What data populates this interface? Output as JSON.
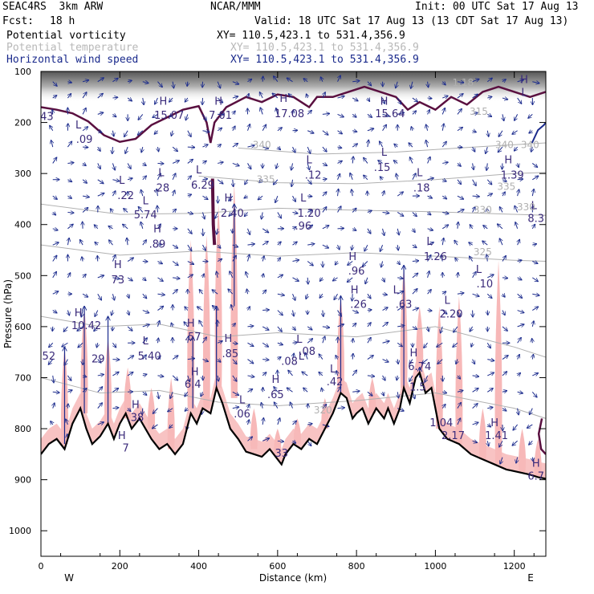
{
  "header": {
    "model": "SEAC4RS  3km ARW",
    "org": "NCAR/MMM",
    "init": "Init: 00 UTC Sat 17 Aug 13",
    "fcst_label": "Fcst:",
    "fcst_value": "18 h",
    "valid": "Valid: 18 UTC Sat 17 Aug 13 (13 CDT Sat 17 Aug 13)"
  },
  "fields": [
    {
      "name": "Potential vorticity",
      "xy": "XY= 110.5,423.1 to 531.4,356.9",
      "color": "#000000"
    },
    {
      "name": "Potential temperature",
      "xy": "XY= 110.5,423.1 to 531.4,356.9",
      "color": "#b8b8b8"
    },
    {
      "name": "Horizontal wind speed",
      "xy": "XY= 110.5,423.1 to 531.4,356.9",
      "color": "#1a2a8c"
    }
  ],
  "colors": {
    "wind": "#1a2a8c",
    "pv_contour": "#5a1040",
    "isentrope": "#b0b0b0",
    "shading": "#f7b8b8",
    "terrain": "#000000"
  },
  "chart_data": {
    "type": "cross-section",
    "xlabel": "Distance (km)",
    "ylabel": "Pressure (hPa)",
    "xlim": [
      0,
      1280
    ],
    "ylim": [
      1050,
      100
    ],
    "x_ticks": [
      0,
      200,
      400,
      600,
      800,
      1000,
      1200
    ],
    "y_ticks": [
      100,
      200,
      300,
      400,
      500,
      600,
      700,
      800,
      900,
      1000
    ],
    "end_labels": {
      "left": "W",
      "right": "E"
    },
    "terrain": [
      [
        0,
        850
      ],
      [
        20,
        830
      ],
      [
        40,
        820
      ],
      [
        60,
        840
      ],
      [
        80,
        790
      ],
      [
        100,
        760
      ],
      [
        115,
        800
      ],
      [
        130,
        830
      ],
      [
        150,
        815
      ],
      [
        170,
        790
      ],
      [
        185,
        820
      ],
      [
        200,
        790
      ],
      [
        215,
        770
      ],
      [
        230,
        800
      ],
      [
        250,
        780
      ],
      [
        265,
        800
      ],
      [
        280,
        820
      ],
      [
        300,
        840
      ],
      [
        320,
        830
      ],
      [
        340,
        850
      ],
      [
        360,
        830
      ],
      [
        380,
        770
      ],
      [
        395,
        790
      ],
      [
        410,
        760
      ],
      [
        430,
        770
      ],
      [
        445,
        720
      ],
      [
        460,
        750
      ],
      [
        480,
        800
      ],
      [
        500,
        820
      ],
      [
        520,
        845
      ],
      [
        540,
        850
      ],
      [
        560,
        855
      ],
      [
        580,
        840
      ],
      [
        600,
        860
      ],
      [
        610,
        870
      ],
      [
        620,
        850
      ],
      [
        640,
        830
      ],
      [
        660,
        840
      ],
      [
        680,
        820
      ],
      [
        700,
        830
      ],
      [
        720,
        800
      ],
      [
        740,
        770
      ],
      [
        760,
        730
      ],
      [
        775,
        740
      ],
      [
        790,
        780
      ],
      [
        800,
        770
      ],
      [
        815,
        760
      ],
      [
        830,
        790
      ],
      [
        850,
        760
      ],
      [
        870,
        780
      ],
      [
        880,
        760
      ],
      [
        895,
        790
      ],
      [
        910,
        760
      ],
      [
        920,
        720
      ],
      [
        935,
        750
      ],
      [
        950,
        700
      ],
      [
        960,
        690
      ],
      [
        975,
        730
      ],
      [
        990,
        720
      ],
      [
        1000,
        760
      ],
      [
        1010,
        800
      ],
      [
        1030,
        820
      ],
      [
        1060,
        830
      ],
      [
        1090,
        850
      ],
      [
        1120,
        860
      ],
      [
        1150,
        870
      ],
      [
        1180,
        880
      ],
      [
        1210,
        885
      ],
      [
        1240,
        890
      ],
      [
        1260,
        895
      ],
      [
        1280,
        898
      ]
    ],
    "isentropes": [
      {
        "label": "340",
        "points": [
          [
            500,
            250
          ],
          [
            700,
            262
          ],
          [
            900,
            258
          ],
          [
            1100,
            248
          ],
          [
            1280,
            240
          ]
        ]
      },
      {
        "label": "335",
        "points": [
          [
            400,
            305
          ],
          [
            600,
            318
          ],
          [
            800,
            320
          ],
          [
            1000,
            312
          ],
          [
            1200,
            300
          ],
          [
            1280,
            298
          ]
        ]
      },
      {
        "label": "330",
        "points": [
          [
            0,
            360
          ],
          [
            200,
            380
          ],
          [
            400,
            378
          ],
          [
            600,
            368
          ],
          [
            800,
            372
          ],
          [
            1000,
            375
          ],
          [
            1200,
            380
          ],
          [
            1280,
            382
          ]
        ]
      },
      {
        "label": "325",
        "points": [
          [
            0,
            440
          ],
          [
            200,
            460
          ],
          [
            400,
            452
          ],
          [
            600,
            462
          ],
          [
            800,
            455
          ],
          [
            1000,
            462
          ],
          [
            1200,
            470
          ],
          [
            1280,
            472
          ]
        ]
      },
      {
        "label": "320",
        "points": [
          [
            0,
            580
          ],
          [
            150,
            600
          ],
          [
            300,
            595
          ],
          [
            450,
            620
          ],
          [
            600,
            612
          ],
          [
            800,
            620
          ],
          [
            1000,
            600
          ],
          [
            1200,
            640
          ],
          [
            1280,
            660
          ]
        ]
      },
      {
        "label": "315",
        "points": [
          [
            0,
            700
          ],
          [
            150,
            730
          ],
          [
            300,
            725
          ],
          [
            450,
            748
          ],
          [
            600,
            755
          ],
          [
            800,
            745
          ],
          [
            1000,
            730
          ],
          [
            1200,
            760
          ],
          [
            1280,
            780
          ]
        ]
      }
    ],
    "pv_labels": [
      {
        "text": "43",
        "x": 15,
        "p": 195
      },
      {
        "text": "L",
        "x": 95,
        "p": 212
      },
      {
        "text": ".09",
        "x": 110,
        "p": 240
      },
      {
        "text": "H",
        "x": 310,
        "p": 165
      },
      {
        "text": "15.07",
        "x": 325,
        "p": 193
      },
      {
        "text": "H",
        "x": 450,
        "p": 165
      },
      {
        "text": "7.01",
        "x": 455,
        "p": 193
      },
      {
        "text": "H",
        "x": 615,
        "p": 160
      },
      {
        "text": "17.08",
        "x": 630,
        "p": 190
      },
      {
        "text": "H",
        "x": 870,
        "p": 165
      },
      {
        "text": "15.64",
        "x": 885,
        "p": 190
      },
      {
        "text": "L",
        "x": 1225,
        "p": 148
      },
      {
        "text": "H",
        "x": 1225,
        "p": 123
      },
      {
        "text": "L",
        "x": 205,
        "p": 320
      },
      {
        "text": ".22",
        "x": 215,
        "p": 350
      },
      {
        "text": "L",
        "x": 305,
        "p": 305
      },
      {
        "text": ".28",
        "x": 305,
        "p": 335
      },
      {
        "text": "L",
        "x": 265,
        "p": 360
      },
      {
        "text": "5.74",
        "x": 265,
        "p": 388
      },
      {
        "text": "H",
        "x": 295,
        "p": 415
      },
      {
        "text": ".89",
        "x": 295,
        "p": 445
      },
      {
        "text": "H",
        "x": 195,
        "p": 485
      },
      {
        "text": "73",
        "x": 195,
        "p": 515
      },
      {
        "text": "L",
        "x": 400,
        "p": 300
      },
      {
        "text": "6.29",
        "x": 410,
        "p": 330
      },
      {
        "text": "H",
        "x": 475,
        "p": 355
      },
      {
        "text": "2.40",
        "x": 485,
        "p": 385
      },
      {
        "text": "L",
        "x": 680,
        "p": 280
      },
      {
        "text": ".12",
        "x": 690,
        "p": 310
      },
      {
        "text": "L",
        "x": 665,
        "p": 355
      },
      {
        "text": "1.20",
        "x": 680,
        "p": 385
      },
      {
        "text": ".96",
        "x": 665,
        "p": 410
      },
      {
        "text": "L",
        "x": 870,
        "p": 265
      },
      {
        "text": ".15",
        "x": 865,
        "p": 295
      },
      {
        "text": "L",
        "x": 960,
        "p": 305
      },
      {
        "text": ".18",
        "x": 965,
        "p": 335
      },
      {
        "text": "H",
        "x": 1185,
        "p": 280
      },
      {
        "text": "1.39",
        "x": 1195,
        "p": 310
      },
      {
        "text": "L",
        "x": 1250,
        "p": 370
      },
      {
        "text": "8.3",
        "x": 1255,
        "p": 395
      },
      {
        "text": "L",
        "x": 985,
        "p": 440
      },
      {
        "text": "1.26",
        "x": 1000,
        "p": 470
      },
      {
        "text": "H",
        "x": 790,
        "p": 470
      },
      {
        "text": ".96",
        "x": 800,
        "p": 498
      },
      {
        "text": "L",
        "x": 1110,
        "p": 495
      },
      {
        "text": ".10",
        "x": 1125,
        "p": 523
      },
      {
        "text": "L",
        "x": 900,
        "p": 535
      },
      {
        "text": ".63",
        "x": 920,
        "p": 563
      },
      {
        "text": "L",
        "x": 1030,
        "p": 555
      },
      {
        "text": "2.20",
        "x": 1040,
        "p": 582
      },
      {
        "text": "H",
        "x": 795,
        "p": 535
      },
      {
        "text": ".26",
        "x": 805,
        "p": 563
      },
      {
        "text": "H",
        "x": 95,
        "p": 580
      },
      {
        "text": "10.42",
        "x": 115,
        "p": 605
      },
      {
        "text": "H",
        "x": 380,
        "p": 600
      },
      {
        "text": ".57",
        "x": 385,
        "p": 627
      },
      {
        "text": "L",
        "x": 265,
        "p": 635
      },
      {
        "text": "5.40",
        "x": 275,
        "p": 665
      },
      {
        "text": "H",
        "x": 475,
        "p": 630
      },
      {
        "text": ".85",
        "x": 480,
        "p": 660
      },
      {
        "text": "L",
        "x": 660,
        "p": 665
      },
      {
        "text": ".08",
        "x": 630,
        "p": 675
      },
      {
        "text": "L",
        "x": 655,
        "p": 632
      },
      {
        "text": ".08",
        "x": 675,
        "p": 655
      },
      {
        "text": "52",
        "x": 20,
        "p": 665
      },
      {
        "text": "29",
        "x": 145,
        "p": 670
      },
      {
        "text": "L",
        "x": 740,
        "p": 690
      },
      {
        "text": ".42",
        "x": 745,
        "p": 715
      },
      {
        "text": "H",
        "x": 945,
        "p": 658
      },
      {
        "text": "6.74",
        "x": 960,
        "p": 685
      },
      {
        "text": "H",
        "x": 390,
        "p": 695
      },
      {
        "text": "6.4",
        "x": 385,
        "p": 720
      },
      {
        "text": "H",
        "x": 595,
        "p": 710
      },
      {
        "text": ".65",
        "x": 595,
        "p": 740
      },
      {
        "text": "1.5",
        "x": 955,
        "p": 725
      },
      {
        "text": "L",
        "x": 510,
        "p": 750
      },
      {
        "text": ".06",
        "x": 510,
        "p": 778
      },
      {
        "text": "H",
        "x": 240,
        "p": 760
      },
      {
        "text": ".38",
        "x": 240,
        "p": 785
      },
      {
        "text": "1.04",
        "x": 1015,
        "p": 795
      },
      {
        "text": "H",
        "x": 1150,
        "p": 795
      },
      {
        "text": "1.41",
        "x": 1155,
        "p": 820
      },
      {
        "text": "2.17",
        "x": 1045,
        "p": 820
      },
      {
        "text": "H",
        "x": 205,
        "p": 820
      },
      {
        "text": "7",
        "x": 215,
        "p": 845
      },
      {
        "text": "33",
        "x": 610,
        "p": 855
      },
      {
        "text": "H",
        "x": 1255,
        "p": 875
      },
      {
        "text": "6.7",
        "x": 1255,
        "p": 900
      }
    ],
    "isentrope_labels": [
      {
        "text": "340",
        "x": 560,
        "p": 250
      },
      {
        "text": "340",
        "x": 1175,
        "p": 250
      },
      {
        "text": "340",
        "x": 1240,
        "p": 250
      },
      {
        "text": "335",
        "x": 570,
        "p": 318
      },
      {
        "text": "335",
        "x": 1180,
        "p": 332
      },
      {
        "text": "330",
        "x": 1230,
        "p": 372
      },
      {
        "text": "330",
        "x": 1120,
        "p": 378
      },
      {
        "text": "325",
        "x": 1120,
        "p": 460
      },
      {
        "text": "320",
        "x": 715,
        "p": 770
      },
      {
        "text": "315",
        "x": 1110,
        "p": 185
      },
      {
        "text": "1.18",
        "x": 1070,
        "p": 128
      }
    ]
  }
}
